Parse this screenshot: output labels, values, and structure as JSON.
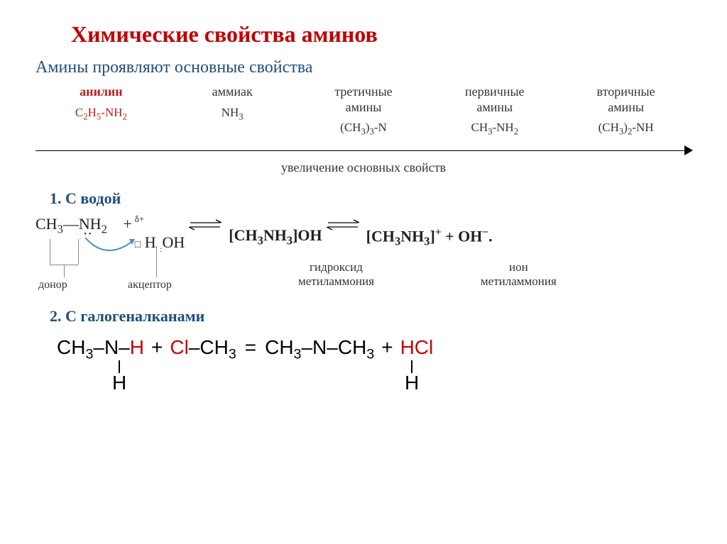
{
  "title": "Химические свойства аминов",
  "subtitle": "Амины проявляют основные свойства",
  "basicity": {
    "columns": [
      {
        "label": "анилин",
        "formula_html": "C<span class='sub'>2</span>H<span class='sub'>5</span>-NH<span class='sub'>2</span>",
        "is_aniline": true
      },
      {
        "label": "аммиак",
        "formula_html": "NH<span class='sub'>3</span>",
        "is_aniline": false
      },
      {
        "label": "третичные\nамины",
        "formula_html": "(CH<span class='sub'>3</span>)<span class='sub'>3</span>-N",
        "is_aniline": false
      },
      {
        "label": "первичные\nамины",
        "formula_html": "CH<span class='sub'>3</span>-NH<span class='sub'>2</span>",
        "is_aniline": false
      },
      {
        "label": "вторичные\nамины",
        "formula_html": "(CH<span class='sub'>3</span>)<span class='sub'>2</span>-NH",
        "is_aniline": false
      }
    ],
    "arrow_caption": "увеличение основных свойств"
  },
  "section1": {
    "header": "1. С водой",
    "reactant_left": "CH",
    "reactant_nh": "NH",
    "delta": "δ+",
    "h_atom": "H",
    "oh": "OH",
    "product1": "[CH₃NH₃]OH",
    "product2_ion": "[CH₃NH₃]",
    "product2_charge": "+",
    "oh_minus": "OH",
    "oh_charge": "−",
    "donor": "донор",
    "acceptor": "акцептор",
    "prod1_label": "гидроксид\nметиламмония",
    "prod2_label": "ион\nметиламмония",
    "box": "□"
  },
  "section2": {
    "header": "2. С галогеналканами",
    "ch3": "CH",
    "n": "N",
    "h": "H",
    "cl": "Cl",
    "eq": "=",
    "hcl": "HCl",
    "plus": "+",
    "dash": "–"
  },
  "colors": {
    "title": "#c00000",
    "subtitle": "#1f4e79",
    "aniline": "#b22222",
    "text": "#333333",
    "red": "#cc0000",
    "arrow_blue": "#4a90c2"
  }
}
